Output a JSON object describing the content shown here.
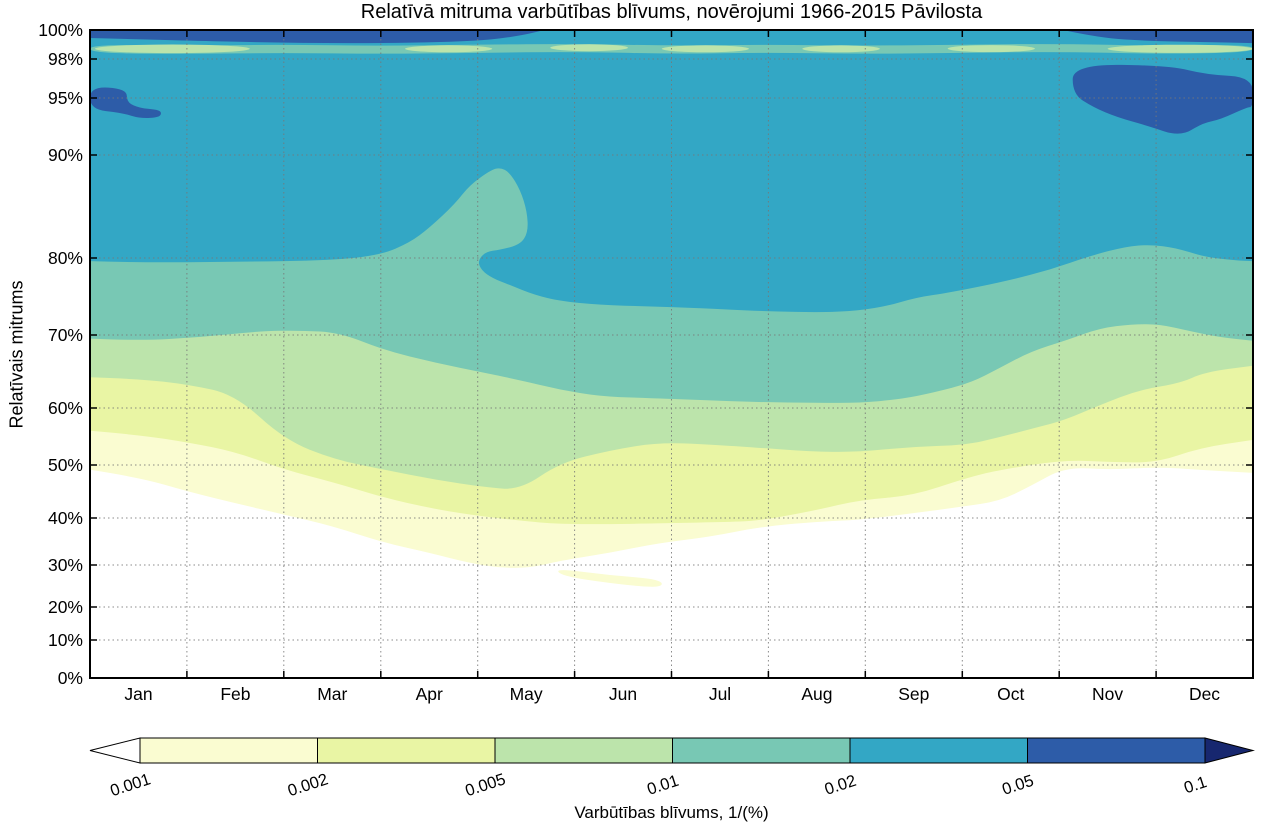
{
  "chart_data": {
    "type": "filled_contour",
    "title": "Relatīvā mitruma varbūtības blīvums, novērojumi 1966-2015 Pāvilosta",
    "ylabel": "Relatīvais mitrums",
    "xlabel": "",
    "x_ticklabels": [
      "Jan",
      "Feb",
      "Mar",
      "Apr",
      "May",
      "Jun",
      "Jul",
      "Aug",
      "Sep",
      "Oct",
      "Nov",
      "Dec"
    ],
    "y_ticks": [
      {
        "label": "100%",
        "value": 100
      },
      {
        "label": "98%",
        "value": 98
      },
      {
        "label": "95%",
        "value": 95
      },
      {
        "label": "90%",
        "value": 90
      },
      {
        "label": "80%",
        "value": 80
      },
      {
        "label": "70%",
        "value": 70
      },
      {
        "label": "60%",
        "value": 60
      },
      {
        "label": "50%",
        "value": 50
      },
      {
        "label": "40%",
        "value": 40
      },
      {
        "label": "30%",
        "value": 30
      },
      {
        "label": "20%",
        "value": 20
      },
      {
        "label": "10%",
        "value": 10
      },
      {
        "label": "0%",
        "value": 0
      }
    ],
    "y_gridlines": [
      98,
      95,
      90,
      80,
      70,
      60,
      50,
      40,
      30,
      20,
      10
    ],
    "levels": [
      0.001,
      0.002,
      0.005,
      0.01,
      0.02,
      0.05,
      0.1
    ],
    "colors": {
      "below_0.001": "#ffffff",
      "0.001-0.002": "#fafcd1",
      "0.002-0.005": "#e9f5a4",
      "0.005-0.01": "#bce4ab",
      "0.01-0.02": "#78c8b4",
      "0.02-0.05": "#33a7c5",
      "0.05-0.1": "#2d5ca8",
      "above_0.1": "#17276f",
      "gridline": "#777777"
    },
    "units": {
      "x": "month (0-12, Jan=0..1)",
      "y": "relative humidity %",
      "z": "probability density 1/(%)"
    },
    "contours": {
      "0.001": [
        [
          0,
          49.1
        ],
        [
          0.5,
          47.7
        ],
        [
          1.03,
          44.9
        ],
        [
          1.5,
          42.8
        ],
        [
          2.01,
          40.6
        ],
        [
          2.5,
          38.3
        ],
        [
          3.04,
          34.7
        ],
        [
          3.5,
          32.6
        ],
        [
          3.92,
          30.4
        ],
        [
          4.23,
          29.3
        ],
        [
          4.54,
          29.3
        ],
        [
          4.85,
          30.9
        ],
        [
          5.37,
          32.6
        ],
        [
          5.88,
          34.7
        ],
        [
          6.4,
          36.0
        ],
        [
          6.91,
          38.1
        ],
        [
          7.5,
          39.2
        ],
        [
          7.94,
          39.6
        ],
        [
          8.49,
          40.9
        ],
        [
          8.98,
          42.1
        ],
        [
          9.39,
          43.2
        ],
        [
          9.7,
          46.0
        ],
        [
          10.06,
          49.6
        ],
        [
          10.52,
          49.1
        ],
        [
          11.01,
          49.6
        ],
        [
          11.45,
          49.1
        ],
        [
          12,
          48.5
        ]
      ],
      "0.002": [
        [
          0,
          56.0
        ],
        [
          0.5,
          55.3
        ],
        [
          1.03,
          53.9
        ],
        [
          1.5,
          52.3
        ],
        [
          2.01,
          49.1
        ],
        [
          2.5,
          46.8
        ],
        [
          3.04,
          43.8
        ],
        [
          3.5,
          41.9
        ],
        [
          3.92,
          40.6
        ],
        [
          4.44,
          39.4
        ],
        [
          4.85,
          38.7
        ],
        [
          5.47,
          38.7
        ],
        [
          5.88,
          38.9
        ],
        [
          6.5,
          39.1
        ],
        [
          6.91,
          39.4
        ],
        [
          7.5,
          41.5
        ],
        [
          7.94,
          43.4
        ],
        [
          8.49,
          44.2
        ],
        [
          9.03,
          47.5
        ],
        [
          9.39,
          49.1
        ],
        [
          10.06,
          50.9
        ],
        [
          10.52,
          50.5
        ],
        [
          11.01,
          50.4
        ],
        [
          11.45,
          53.0
        ],
        [
          12,
          54.4
        ]
      ],
      "0.005": [
        [
          0,
          64.2
        ],
        [
          0.5,
          64.0
        ],
        [
          1.03,
          63.2
        ],
        [
          1.5,
          61.8
        ],
        [
          2.01,
          54.4
        ],
        [
          2.53,
          50.9
        ],
        [
          3.04,
          49.1
        ],
        [
          3.56,
          47.2
        ],
        [
          4.08,
          45.8
        ],
        [
          4.44,
          45.3
        ],
        [
          4.85,
          50.4
        ],
        [
          5.37,
          52.6
        ],
        [
          5.88,
          54.0
        ],
        [
          6.5,
          53.5
        ],
        [
          6.91,
          53.0
        ],
        [
          7.5,
          52.3
        ],
        [
          7.94,
          52.3
        ],
        [
          8.49,
          53.2
        ],
        [
          9.03,
          53.5
        ],
        [
          9.39,
          54.9
        ],
        [
          9.75,
          56.5
        ],
        [
          10.06,
          57.9
        ],
        [
          10.42,
          60.4
        ],
        [
          10.83,
          62.5
        ],
        [
          11.25,
          63.4
        ],
        [
          11.5,
          64.9
        ],
        [
          12,
          65.8
        ]
      ],
      "0.01": [
        [
          0,
          69.5
        ],
        [
          0.5,
          69.2
        ],
        [
          1.13,
          69.7
        ],
        [
          1.75,
          70.5
        ],
        [
          2.17,
          70.6
        ],
        [
          2.58,
          70.3
        ],
        [
          3.04,
          67.9
        ],
        [
          3.56,
          66.2
        ],
        [
          4.08,
          64.8
        ],
        [
          4.44,
          63.8
        ],
        [
          4.85,
          62.5
        ],
        [
          5.26,
          61.6
        ],
        [
          5.67,
          61.4
        ],
        [
          6.29,
          61.1
        ],
        [
          6.91,
          60.8
        ],
        [
          7.5,
          60.7
        ],
        [
          7.94,
          60.7
        ],
        [
          8.36,
          61.2
        ],
        [
          8.7,
          62.1
        ],
        [
          9.08,
          63.4
        ],
        [
          9.39,
          65.5
        ],
        [
          9.7,
          67.7
        ],
        [
          10.08,
          69.3
        ],
        [
          10.42,
          70.9
        ],
        [
          10.76,
          71.4
        ],
        [
          11.04,
          71.4
        ],
        [
          11.35,
          70.5
        ],
        [
          11.66,
          69.7
        ],
        [
          12,
          69.2
        ]
      ],
      "0.02": [
        [
          0,
          79.6
        ],
        [
          0.5,
          79.4
        ],
        [
          1.5,
          79.5
        ],
        [
          2.5,
          79.7
        ],
        [
          3.0,
          80.3
        ],
        [
          3.3,
          81.5
        ],
        [
          3.5,
          82.9
        ],
        [
          3.77,
          85.3
        ],
        [
          3.92,
          87.1
        ],
        [
          4.13,
          88.5
        ],
        [
          4.23,
          88.8
        ],
        [
          4.33,
          88.3
        ],
        [
          4.44,
          86.6
        ],
        [
          4.51,
          84.5
        ],
        [
          4.52,
          82.5
        ],
        [
          4.44,
          81.3
        ],
        [
          4.23,
          80.8
        ],
        [
          4.08,
          80.6
        ],
        [
          4.0,
          79.6
        ],
        [
          4.04,
          78.4
        ],
        [
          4.15,
          77.4
        ],
        [
          4.33,
          76.5
        ],
        [
          4.59,
          75.2
        ],
        [
          4.85,
          74.4
        ],
        [
          5.26,
          73.9
        ],
        [
          5.78,
          73.7
        ],
        [
          6.29,
          73.5
        ],
        [
          6.91,
          73.1
        ],
        [
          7.67,
          72.9
        ],
        [
          8.15,
          73.5
        ],
        [
          8.53,
          74.9
        ],
        [
          8.87,
          75.5
        ],
        [
          9.49,
          77.1
        ],
        [
          9.91,
          78.5
        ],
        [
          10.32,
          80.2
        ],
        [
          10.68,
          81.1
        ],
        [
          10.94,
          81.3
        ],
        [
          11.2,
          81.0
        ],
        [
          11.5,
          80.1
        ],
        [
          11.81,
          79.7
        ],
        [
          12,
          79.6
        ]
      ]
    },
    "features": {
      "high_band_top_left_0.05": [
        [
          0,
          99.45
        ],
        [
          1.13,
          99.24
        ],
        [
          2.17,
          99.1
        ],
        [
          3.2,
          99.1
        ],
        [
          4.02,
          99.24
        ],
        [
          4.44,
          99.6
        ],
        [
          4.69,
          100
        ]
      ],
      "high_band_top_right_0.05": [
        [
          10.04,
          100
        ],
        [
          10.42,
          99.45
        ],
        [
          10.94,
          99.24
        ],
        [
          11.45,
          99.17
        ],
        [
          12,
          99.1
        ]
      ],
      "dip_stripe_98.5_outline": [
        [
          0,
          99.0
        ],
        [
          1,
          98.93
        ],
        [
          2,
          98.99
        ],
        [
          3,
          98.9
        ],
        [
          4,
          98.99
        ],
        [
          5,
          99.05
        ],
        [
          6,
          98.92
        ],
        [
          7,
          98.99
        ],
        [
          8,
          98.92
        ],
        [
          9,
          98.99
        ],
        [
          10,
          99.05
        ],
        [
          11,
          98.92
        ],
        [
          12,
          98.99
        ],
        [
          12,
          98.45
        ],
        [
          11,
          98.35
        ],
        [
          10,
          98.5
        ],
        [
          9,
          98.42
        ],
        [
          8,
          98.35
        ],
        [
          7,
          98.45
        ],
        [
          6,
          98.35
        ],
        [
          5,
          98.5
        ],
        [
          4,
          98.42
        ],
        [
          3,
          98.35
        ],
        [
          2,
          98.42
        ],
        [
          1,
          98.35
        ],
        [
          0,
          98.4
        ]
      ],
      "dip_stripe_lenses_0.005_0.01": [
        [
          0.85,
          98.7,
          0.8,
          0.3
        ],
        [
          3.7,
          98.7,
          0.45,
          0.24
        ],
        [
          5.15,
          98.78,
          0.4,
          0.24
        ],
        [
          6.35,
          98.7,
          0.45,
          0.24
        ],
        [
          7.75,
          98.7,
          0.4,
          0.24
        ],
        [
          9.3,
          98.72,
          0.45,
          0.24
        ],
        [
          11.25,
          98.7,
          0.75,
          0.28
        ]
      ],
      "high_blob_jan_0.05": [
        [
          0,
          95.9
        ],
        [
          0.38,
          95.7
        ],
        [
          0.38,
          94.6
        ],
        [
          0.52,
          94.1
        ],
        [
          0.67,
          94.0
        ],
        [
          0.74,
          93.8
        ],
        [
          0.72,
          93.3
        ],
        [
          0.52,
          93.2
        ],
        [
          0.33,
          93.7
        ],
        [
          0,
          94.0
        ]
      ],
      "high_blob_nov_dec_0.05": [
        [
          10.14,
          97.6
        ],
        [
          11.14,
          97.5
        ],
        [
          11.52,
          96.8
        ],
        [
          12,
          96.6
        ],
        [
          12,
          94.2
        ],
        [
          11.94,
          94.2
        ],
        [
          11.66,
          93.1
        ],
        [
          11.48,
          92.8
        ],
        [
          11.25,
          91.6
        ],
        [
          10.9,
          92.6
        ],
        [
          10.6,
          93.3
        ],
        [
          10.35,
          94.2
        ],
        [
          10.14,
          95.3
        ]
      ],
      "low_island_0.001_may_jun": [
        [
          4.8,
          29.2
        ],
        [
          5.35,
          27.6
        ],
        [
          5.9,
          26.6
        ],
        [
          5.9,
          24.4
        ],
        [
          5.35,
          25.7
        ],
        [
          4.87,
          27.4
        ]
      ]
    },
    "colorbar": {
      "label": "Varbūtības blīvums, 1/(%)",
      "ticks": [
        "0.001",
        "0.002",
        "0.005",
        "0.01",
        "0.02",
        "0.05",
        "0.1"
      ],
      "segment_colors": [
        "#fafcd1",
        "#e9f5a4",
        "#bce4ab",
        "#78c8b4",
        "#33a7c5",
        "#2d5ca8"
      ],
      "left_arrow_color": "#ffffff",
      "right_arrow_color": "#17276f"
    }
  }
}
